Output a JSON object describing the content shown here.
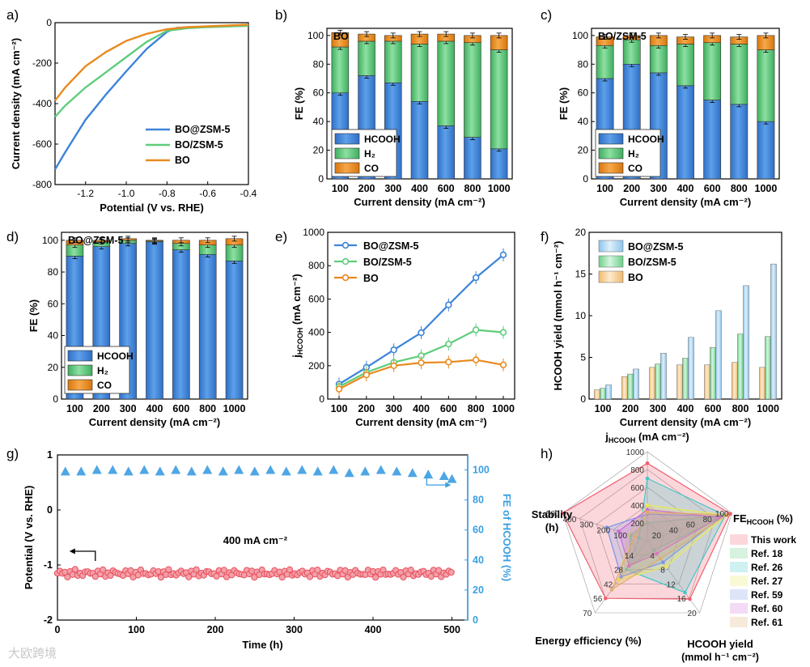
{
  "colors": {
    "blue": "#3d84d8",
    "green": "#5fcd7c",
    "orange": "#e98a1f",
    "red": "#f06070",
    "ltblue": "#6cb8e0",
    "lightblue": "#a9d5f2"
  },
  "watermark": "大欧跨境",
  "chart_data": [
    {
      "panel": "a)",
      "type": "line",
      "xlabel": "Potential (V vs. RHE)",
      "ylabel": "Current density (mA cm⁻²)",
      "xlim": [
        -1.35,
        -0.4
      ],
      "ylim": [
        -800,
        0
      ],
      "xticks": [
        "-1.2",
        "-1.0",
        "-0.8",
        "-0.6",
        "-0.4"
      ],
      "yticks": [
        "0",
        "-200",
        "-400",
        "-600",
        "-800"
      ],
      "series": [
        {
          "name": "BO@ZSM-5",
          "color": "#3d84d8",
          "points": [
            [
              -1.35,
              -725
            ],
            [
              -1.3,
              -640
            ],
            [
              -1.2,
              -480
            ],
            [
              -1.1,
              -355
            ],
            [
              -1.0,
              -240
            ],
            [
              -0.9,
              -130
            ],
            [
              -0.8,
              -45
            ],
            [
              -0.75,
              -25
            ],
            [
              -0.6,
              -20
            ],
            [
              -0.4,
              -15
            ]
          ]
        },
        {
          "name": "BO/ZSM-5",
          "color": "#5fcd7c",
          "points": [
            [
              -1.35,
              -465
            ],
            [
              -1.3,
              -410
            ],
            [
              -1.2,
              -320
            ],
            [
              -1.1,
              -245
            ],
            [
              -1.0,
              -170
            ],
            [
              -0.9,
              -95
            ],
            [
              -0.8,
              -40
            ],
            [
              -0.7,
              -27
            ],
            [
              -0.6,
              -22
            ],
            [
              -0.4,
              -15
            ]
          ]
        },
        {
          "name": "BO",
          "color": "#e98a1f",
          "points": [
            [
              -1.35,
              -385
            ],
            [
              -1.3,
              -320
            ],
            [
              -1.2,
              -215
            ],
            [
              -1.1,
              -145
            ],
            [
              -1.0,
              -90
            ],
            [
              -0.9,
              -55
            ],
            [
              -0.8,
              -32
            ],
            [
              -0.7,
              -22
            ],
            [
              -0.6,
              -18
            ],
            [
              -0.4,
              -10
            ]
          ]
        }
      ]
    },
    {
      "panel": "b)",
      "type": "stacked-bar",
      "title": "BO",
      "categories": [
        "100",
        "200",
        "300",
        "400",
        "600",
        "800",
        "1000"
      ],
      "xlabel": "Current density (mA cm⁻²)",
      "ylabel": "FE (%)",
      "ylim": [
        0,
        105
      ],
      "yticks": [
        "0",
        "20",
        "40",
        "60",
        "80",
        "100"
      ],
      "series": [
        {
          "name": "HCOOH",
          "values": [
            60,
            72,
            67,
            54,
            37,
            29,
            21
          ]
        },
        {
          "name": "H₂",
          "values": [
            32,
            24,
            29,
            40,
            59,
            66,
            69
          ]
        },
        {
          "name": "CO",
          "values": [
            10,
            5,
            4,
            7,
            5,
            5,
            10
          ]
        }
      ]
    },
    {
      "panel": "c)",
      "type": "stacked-bar",
      "title": "BO/ZSM-5",
      "categories": [
        "100",
        "200",
        "300",
        "400",
        "600",
        "800",
        "1000"
      ],
      "xlabel": "Current density (mA cm⁻²)",
      "ylabel": "FE (%)",
      "ylim": [
        0,
        105
      ],
      "yticks": [
        "0",
        "20",
        "40",
        "60",
        "80",
        "100"
      ],
      "series": [
        {
          "name": "HCOOH",
          "values": [
            70,
            80,
            74,
            65,
            55,
            52,
            40
          ]
        },
        {
          "name": "H₂",
          "values": [
            23,
            17,
            19,
            29,
            40,
            42,
            50
          ]
        },
        {
          "name": "CO",
          "values": [
            6,
            3,
            7,
            5,
            5,
            5,
            10
          ]
        }
      ]
    },
    {
      "panel": "d)",
      "type": "stacked-bar",
      "title": "BO@ZSM-5",
      "categories": [
        "100",
        "200",
        "300",
        "400",
        "600",
        "800",
        "1000"
      ],
      "xlabel": "Current density (mA cm⁻²)",
      "ylabel": "FE (%)",
      "ylim": [
        0,
        105
      ],
      "yticks": [
        "0",
        "20",
        "40",
        "60",
        "80",
        "100"
      ],
      "series": [
        {
          "name": "HCOOH",
          "values": [
            90,
            96,
            98,
            99,
            94,
            91,
            87
          ]
        },
        {
          "name": "H₂",
          "values": [
            7,
            3,
            2,
            0.5,
            4,
            6,
            10
          ]
        },
        {
          "name": "CO",
          "values": [
            3,
            1,
            1,
            0.5,
            2,
            3,
            4
          ]
        }
      ]
    },
    {
      "panel": "e)",
      "type": "line",
      "categories": [
        "100",
        "200",
        "300",
        "400",
        "600",
        "800",
        "1000"
      ],
      "xlabel": "Current density (mA cm⁻²)",
      "ylabel": "jHCOOH (mA cm⁻²)",
      "ylabel_main": "j",
      "ylabel_sub": "HCOOH",
      "ylabel_unit": " (mA cm⁻²)",
      "ylim": [
        0,
        1000
      ],
      "yticks": [
        "0",
        "200",
        "400",
        "600",
        "800",
        "1000"
      ],
      "series": [
        {
          "name": "BO@ZSM-5",
          "color": "#3d84d8",
          "values": [
            90,
            190,
            295,
            398,
            565,
            728,
            865
          ]
        },
        {
          "name": "BO/ZSM-5",
          "color": "#5fcd7c",
          "values": [
            75,
            160,
            220,
            260,
            330,
            415,
            400
          ]
        },
        {
          "name": "BO",
          "color": "#e98a1f",
          "values": [
            60,
            145,
            200,
            218,
            222,
            235,
            205
          ]
        }
      ]
    },
    {
      "panel": "f)",
      "type": "bar",
      "categories": [
        "100",
        "200",
        "300",
        "400",
        "600",
        "800",
        "1000"
      ],
      "xlabel": "Current density (mA cm⁻²)",
      "ylabel": "HCOOH yield (mmol h⁻¹ cm⁻²)",
      "ylim": [
        0,
        20
      ],
      "yticks": [
        "0",
        "5",
        "10",
        "15",
        "20"
      ],
      "series": [
        {
          "name": "BO@ZSM-5",
          "values": [
            1.7,
            3.6,
            5.5,
            7.4,
            10.6,
            13.6,
            16.2
          ]
        },
        {
          "name": "BO/ZSM-5",
          "values": [
            1.3,
            3.0,
            4.2,
            4.9,
            6.2,
            7.8,
            7.5
          ]
        },
        {
          "name": "BO",
          "values": [
            1.1,
            2.7,
            3.8,
            4.1,
            4.1,
            4.4,
            3.8
          ]
        }
      ]
    },
    {
      "panel": "g)",
      "type": "scatter-dual-axis",
      "xlabel": "Time (h)",
      "ylabel": "Potential (V vs. RHE)",
      "y2label": "FE of HCOOH (%)",
      "xlim": [
        0,
        520
      ],
      "ylim": [
        -2,
        1
      ],
      "y2lim": [
        0,
        110
      ],
      "xticks": [
        "0",
        "100",
        "200",
        "300",
        "400",
        "500"
      ],
      "yticks": [
        "1",
        "0",
        "-1",
        "-2"
      ],
      "y2ticks": [
        "0",
        "20",
        "40",
        "60",
        "80",
        "100"
      ],
      "annotation": "400 mA cm⁻²",
      "potential": {
        "from": 0,
        "to": 500,
        "mean": -1.15,
        "unit": "V"
      },
      "fe_points": [
        [
          10,
          99
        ],
        [
          30,
          99
        ],
        [
          50,
          100
        ],
        [
          70,
          100
        ],
        [
          90,
          99
        ],
        [
          110,
          100
        ],
        [
          130,
          99
        ],
        [
          150,
          100
        ],
        [
          170,
          99
        ],
        [
          190,
          100
        ],
        [
          210,
          99
        ],
        [
          230,
          100
        ],
        [
          250,
          99
        ],
        [
          270,
          100
        ],
        [
          290,
          99
        ],
        [
          310,
          100
        ],
        [
          330,
          99
        ],
        [
          350,
          100
        ],
        [
          370,
          98
        ],
        [
          390,
          99
        ],
        [
          410,
          100
        ],
        [
          430,
          99
        ],
        [
          450,
          98
        ],
        [
          470,
          97
        ],
        [
          490,
          96
        ],
        [
          500,
          94
        ]
      ]
    },
    {
      "panel": "h)",
      "type": "radar",
      "axes": [
        {
          "label": "j",
          "sub": "HCOOH",
          "unit": " (mA cm⁻²)",
          "ticks": [
            "200",
            "400",
            "600",
            "800",
            "1000"
          ]
        },
        {
          "label": "FE",
          "sub": "HCOOH",
          "unit": " (%)",
          "ticks": [
            "20",
            "40",
            "60",
            "80",
            "100"
          ]
        },
        {
          "label": "HCOOH yield",
          "unit": "(mmol h⁻¹ cm⁻²)",
          "ticks": [
            "4",
            "8",
            "12",
            "16",
            "20"
          ]
        },
        {
          "label": "Energy efficiency (%)",
          "ticks": [
            "14",
            "28",
            "42",
            "56",
            "70"
          ]
        },
        {
          "label": "Stability",
          "unit": "(h)",
          "ticks": [
            "100",
            "200",
            "300",
            "400",
            "500"
          ]
        }
      ],
      "series": [
        {
          "name": "This work",
          "color": "#f06070",
          "fill": "rgba(240,96,112,0.25)",
          "values": [
            0.87,
            0.98,
            0.81,
            0.8,
            1.0
          ]
        },
        {
          "name": "Ref. 18",
          "color": "#5fcd7c",
          "fill": "rgba(95,205,124,0.25)",
          "values": [
            0.2,
            0.93,
            0.13,
            0.35,
            0.2
          ]
        },
        {
          "name": "Ref. 26",
          "color": "#40c8c8",
          "fill": "rgba(64,200,200,0.25)",
          "values": [
            0.7,
            0.92,
            0.72,
            0.4,
            0.1
          ]
        },
        {
          "name": "Ref. 27",
          "color": "#e8e85a",
          "fill": "rgba(232,232,90,0.25)",
          "values": [
            0.4,
            0.93,
            0.36,
            0.55,
            0.22
          ]
        },
        {
          "name": "Ref. 59",
          "color": "#7a96e6",
          "fill": "rgba(122,150,230,0.25)",
          "values": [
            0.3,
            0.88,
            0.3,
            0.5,
            0.48
          ]
        },
        {
          "name": "Ref. 60",
          "color": "#d06ad8",
          "fill": "rgba(208,106,216,0.25)",
          "values": [
            0.35,
            0.85,
            0.18,
            0.35,
            0.34
          ]
        },
        {
          "name": "Ref. 61",
          "color": "#e1ab6a",
          "fill": "rgba(225,171,106,0.25)",
          "values": [
            0.32,
            0.94,
            0.25,
            0.68,
            0.15
          ]
        }
      ]
    }
  ]
}
